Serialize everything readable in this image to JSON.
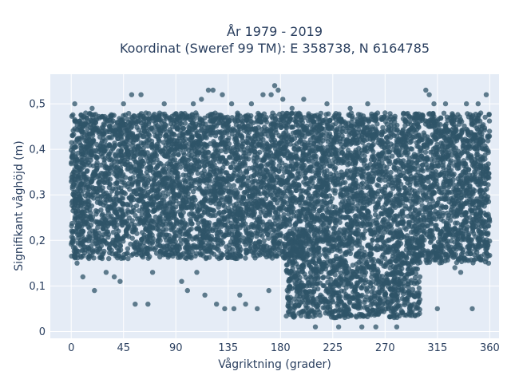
{
  "chart_data": {
    "type": "scatter",
    "title_line1": "År 1979 - 2019",
    "title_line2": "Koordinat (Sweref 99 TM): E 358738, N 6164785",
    "xlabel": "Vågriktning (grader)",
    "ylabel": "Signifikant våghöjd (m)",
    "xlim": [
      -18,
      368
    ],
    "ylim": [
      -0.015,
      0.565
    ],
    "x_ticks": [
      0,
      45,
      90,
      135,
      180,
      225,
      270,
      315,
      360
    ],
    "x_tick_labels": [
      "0",
      "45",
      "90",
      "135",
      "180",
      "225",
      "270",
      "315",
      "360"
    ],
    "y_ticks": [
      0,
      0.1,
      0.2,
      0.3,
      0.4,
      0.5
    ],
    "y_tick_labels": [
      "0",
      "0,1",
      "0,2",
      "0,3",
      "0,4",
      "0,5"
    ],
    "grid": true,
    "legend": "none",
    "marker_color": "#2f5468",
    "plot_background": "#e5ecf6",
    "dense_regions": [
      {
        "x": [
          0,
          360
        ],
        "y": [
          0.2,
          0.48
        ]
      },
      {
        "x": [
          0,
          200
        ],
        "y": [
          0.16,
          0.2
        ]
      },
      {
        "x": [
          185,
          300
        ],
        "y": [
          0.03,
          0.2
        ]
      },
      {
        "x": [
          290,
          360
        ],
        "y": [
          0.15,
          0.2
        ]
      }
    ],
    "outliers": [
      {
        "x": 3,
        "y": 0.5
      },
      {
        "x": 5,
        "y": 0.15
      },
      {
        "x": 10,
        "y": 0.12
      },
      {
        "x": 18,
        "y": 0.49
      },
      {
        "x": 20,
        "y": 0.09
      },
      {
        "x": 30,
        "y": 0.13
      },
      {
        "x": 37,
        "y": 0.12
      },
      {
        "x": 42,
        "y": 0.11
      },
      {
        "x": 45,
        "y": 0.5
      },
      {
        "x": 52,
        "y": 0.52
      },
      {
        "x": 55,
        "y": 0.06
      },
      {
        "x": 60,
        "y": 0.52
      },
      {
        "x": 66,
        "y": 0.06
      },
      {
        "x": 70,
        "y": 0.13
      },
      {
        "x": 80,
        "y": 0.5
      },
      {
        "x": 95,
        "y": 0.11
      },
      {
        "x": 100,
        "y": 0.09
      },
      {
        "x": 105,
        "y": 0.5
      },
      {
        "x": 108,
        "y": 0.13
      },
      {
        "x": 112,
        "y": 0.51
      },
      {
        "x": 115,
        "y": 0.08
      },
      {
        "x": 118,
        "y": 0.53
      },
      {
        "x": 122,
        "y": 0.53
      },
      {
        "x": 125,
        "y": 0.06
      },
      {
        "x": 130,
        "y": 0.52
      },
      {
        "x": 132,
        "y": 0.05
      },
      {
        "x": 138,
        "y": 0.5
      },
      {
        "x": 140,
        "y": 0.05
      },
      {
        "x": 145,
        "y": 0.08
      },
      {
        "x": 150,
        "y": 0.06
      },
      {
        "x": 155,
        "y": 0.5
      },
      {
        "x": 160,
        "y": 0.05
      },
      {
        "x": 165,
        "y": 0.52
      },
      {
        "x": 170,
        "y": 0.09
      },
      {
        "x": 172,
        "y": 0.52
      },
      {
        "x": 175,
        "y": 0.54
      },
      {
        "x": 178,
        "y": 0.53
      },
      {
        "x": 182,
        "y": 0.51
      },
      {
        "x": 190,
        "y": 0.49
      },
      {
        "x": 200,
        "y": 0.51
      },
      {
        "x": 210,
        "y": 0.01
      },
      {
        "x": 220,
        "y": 0.5
      },
      {
        "x": 230,
        "y": 0.01
      },
      {
        "x": 240,
        "y": 0.49
      },
      {
        "x": 250,
        "y": 0.01
      },
      {
        "x": 255,
        "y": 0.5
      },
      {
        "x": 262,
        "y": 0.01
      },
      {
        "x": 270,
        "y": 0.48
      },
      {
        "x": 280,
        "y": 0.01
      },
      {
        "x": 295,
        "y": 0.06
      },
      {
        "x": 300,
        "y": 0.07
      },
      {
        "x": 305,
        "y": 0.53
      },
      {
        "x": 308,
        "y": 0.52
      },
      {
        "x": 312,
        "y": 0.5
      },
      {
        "x": 315,
        "y": 0.05
      },
      {
        "x": 322,
        "y": 0.5
      },
      {
        "x": 330,
        "y": 0.14
      },
      {
        "x": 335,
        "y": 0.13
      },
      {
        "x": 340,
        "y": 0.5
      },
      {
        "x": 345,
        "y": 0.05
      },
      {
        "x": 350,
        "y": 0.5
      },
      {
        "x": 357,
        "y": 0.52
      },
      {
        "x": 359,
        "y": 0.15
      }
    ]
  }
}
